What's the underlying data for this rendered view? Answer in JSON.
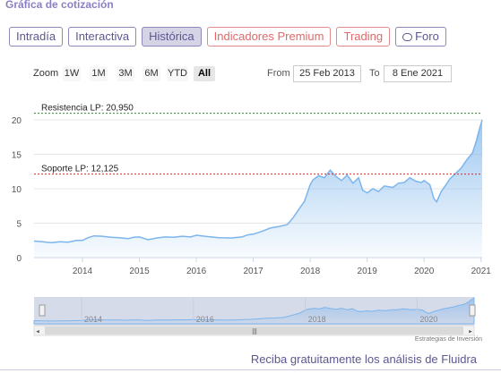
{
  "page": {
    "title": "Gráfica de cotización",
    "tabs": [
      "Intradía",
      "Interactiva",
      "Histórica",
      "Indicadores Premium",
      "Trading",
      "Foro"
    ],
    "active_tab": "Histórica",
    "colors": {
      "accent": "#5b5790",
      "premium": "#e06a6a",
      "series": "#7cb5ec",
      "resistance": "#2e8b2e",
      "support": "#d62728"
    }
  },
  "zoom": {
    "label": "Zoom",
    "buttons": [
      "1W",
      "1M",
      "3M",
      "6M",
      "YTD",
      "All"
    ],
    "selected": "All"
  },
  "range": {
    "from_label": "From",
    "from_value": "25 Feb 2013",
    "to_label": "To",
    "to_value": "8 Ene 2021"
  },
  "navigator": {
    "labels": [
      "2014",
      "2016",
      "2018",
      "2020"
    ],
    "scroll_icon": "|||"
  },
  "credit": "Estrategias de Inversión",
  "promo": "Reciba gratuitamente los análisis de Fluidra",
  "chart_data": {
    "type": "area",
    "title": "",
    "xlabel": "",
    "ylabel": "",
    "xlim": [
      2013.15,
      2021.02
    ],
    "ylim": [
      0,
      20
    ],
    "grid": true,
    "legend": "none",
    "x_ticks": [
      2014,
      2015,
      2016,
      2017,
      2018,
      2019,
      2020,
      2021
    ],
    "y_ticks": [
      0,
      5,
      10,
      15,
      20
    ],
    "annotations": [
      {
        "label": "Resistencia LP: 20,950",
        "value": 20.95,
        "style": "dashed",
        "color": "#2e8b2e"
      },
      {
        "label": "Soporte LP: 12,125",
        "value": 12.125,
        "style": "dashed",
        "color": "#d62728"
      }
    ],
    "series": [
      {
        "values": [
          [
            2013.15,
            2.4
          ],
          [
            2013.3,
            2.3
          ],
          [
            2013.45,
            2.15
          ],
          [
            2013.6,
            2.3
          ],
          [
            2013.75,
            2.25
          ],
          [
            2013.9,
            2.5
          ],
          [
            2014.0,
            2.5
          ],
          [
            2014.1,
            2.9
          ],
          [
            2014.2,
            3.15
          ],
          [
            2014.35,
            3.1
          ],
          [
            2014.5,
            2.95
          ],
          [
            2014.65,
            2.9
          ],
          [
            2014.8,
            2.75
          ],
          [
            2014.9,
            2.95
          ],
          [
            2015.0,
            3.0
          ],
          [
            2015.15,
            2.6
          ],
          [
            2015.3,
            2.85
          ],
          [
            2015.45,
            3.0
          ],
          [
            2015.6,
            2.95
          ],
          [
            2015.75,
            3.1
          ],
          [
            2015.9,
            3.0
          ],
          [
            2016.0,
            3.25
          ],
          [
            2016.2,
            3.05
          ],
          [
            2016.4,
            2.9
          ],
          [
            2016.6,
            2.85
          ],
          [
            2016.8,
            3.0
          ],
          [
            2016.9,
            3.3
          ],
          [
            2017.0,
            3.4
          ],
          [
            2017.15,
            3.8
          ],
          [
            2017.3,
            4.3
          ],
          [
            2017.45,
            4.5
          ],
          [
            2017.6,
            4.8
          ],
          [
            2017.7,
            5.8
          ],
          [
            2017.8,
            7.0
          ],
          [
            2017.9,
            8.2
          ],
          [
            2018.0,
            10.6
          ],
          [
            2018.05,
            11.3
          ],
          [
            2018.15,
            11.9
          ],
          [
            2018.25,
            11.6
          ],
          [
            2018.35,
            12.7
          ],
          [
            2018.45,
            11.8
          ],
          [
            2018.55,
            11.2
          ],
          [
            2018.65,
            12.0
          ],
          [
            2018.75,
            10.8
          ],
          [
            2018.85,
            11.6
          ],
          [
            2018.92,
            9.8
          ],
          [
            2019.0,
            9.4
          ],
          [
            2019.1,
            10.0
          ],
          [
            2019.2,
            9.6
          ],
          [
            2019.3,
            10.4
          ],
          [
            2019.45,
            10.2
          ],
          [
            2019.55,
            10.8
          ],
          [
            2019.65,
            10.9
          ],
          [
            2019.75,
            11.6
          ],
          [
            2019.85,
            11.1
          ],
          [
            2019.95,
            10.9
          ],
          [
            2020.0,
            11.2
          ],
          [
            2020.1,
            10.6
          ],
          [
            2020.17,
            8.6
          ],
          [
            2020.22,
            8.1
          ],
          [
            2020.3,
            9.6
          ],
          [
            2020.38,
            10.5
          ],
          [
            2020.45,
            11.4
          ],
          [
            2020.55,
            12.2
          ],
          [
            2020.65,
            13.0
          ],
          [
            2020.75,
            14.2
          ],
          [
            2020.85,
            15.2
          ],
          [
            2020.92,
            17.0
          ],
          [
            2020.97,
            18.6
          ],
          [
            2021.02,
            20.0
          ]
        ]
      }
    ]
  }
}
